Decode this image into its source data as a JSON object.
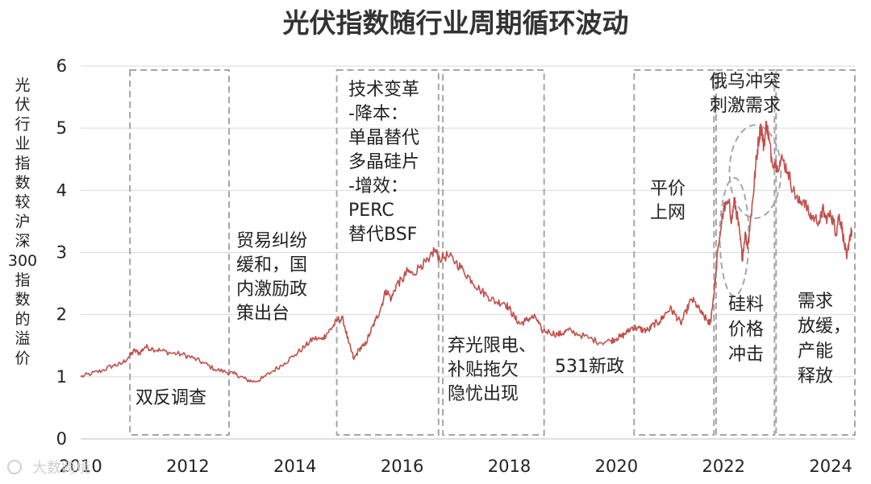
{
  "chart_data": {
    "type": "line",
    "title": "光伏指数随行业周期循环波动",
    "ylabel": "光伏行业指数较沪深300指数的溢价",
    "xlabel": "",
    "ylim": [
      0,
      6
    ],
    "y_ticks": [
      "0",
      "1",
      "2",
      "3",
      "4",
      "5",
      "6"
    ],
    "x_range": [
      2010.0,
      2024.45
    ],
    "x_ticks": [
      "2010",
      "2012",
      "2014",
      "2016",
      "2018",
      "2020",
      "2022",
      "2024"
    ],
    "grid": "horizontal",
    "line_color": "#c0504d",
    "series": [
      {
        "name": "",
        "x": [
          2010.0,
          2010.2,
          2010.4,
          2010.6,
          2010.75,
          2010.9,
          2011.0,
          2011.1,
          2011.2,
          2011.35,
          2011.5,
          2011.7,
          2011.9,
          2012.1,
          2012.3,
          2012.5,
          2012.7,
          2012.85,
          2013.0,
          2013.1,
          2013.25,
          2013.4,
          2013.6,
          2013.8,
          2014.0,
          2014.2,
          2014.35,
          2014.5,
          2014.6,
          2014.7,
          2014.8,
          2014.9,
          2015.0,
          2015.1,
          2015.2,
          2015.3,
          2015.4,
          2015.5,
          2015.6,
          2015.7,
          2015.8,
          2015.9,
          2016.0,
          2016.1,
          2016.2,
          2016.35,
          2016.5,
          2016.6,
          2016.7,
          2016.85,
          2017.0,
          2017.15,
          2017.3,
          2017.45,
          2017.6,
          2017.75,
          2017.9,
          2018.0,
          2018.1,
          2018.2,
          2018.3,
          2018.4,
          2018.5,
          2018.6,
          2018.75,
          2018.9,
          2019.0,
          2019.1,
          2019.3,
          2019.5,
          2019.7,
          2019.9,
          2020.0,
          2020.1,
          2020.2,
          2020.3,
          2020.4,
          2020.5,
          2020.6,
          2020.7,
          2020.8,
          2020.9,
          2021.0,
          2021.1,
          2021.2,
          2021.3,
          2021.4,
          2021.5,
          2021.6,
          2021.7,
          2021.75,
          2021.8,
          2021.85,
          2021.9,
          2022.0,
          2022.1,
          2022.15,
          2022.2,
          2022.25,
          2022.3,
          2022.35,
          2022.4,
          2022.45,
          2022.5,
          2022.55,
          2022.6,
          2022.65,
          2022.7,
          2022.75,
          2022.8,
          2022.85,
          2022.9,
          2023.0,
          2023.1,
          2023.2,
          2023.3,
          2023.4,
          2023.5,
          2023.6,
          2023.7,
          2023.8,
          2023.85,
          2023.9,
          2024.0,
          2024.05,
          2024.1,
          2024.15,
          2024.2,
          2024.25,
          2024.3,
          2024.35,
          2024.4
        ],
        "y": [
          1.0,
          1.05,
          1.1,
          1.18,
          1.2,
          1.32,
          1.42,
          1.38,
          1.48,
          1.45,
          1.42,
          1.38,
          1.36,
          1.3,
          1.22,
          1.12,
          1.08,
          1.05,
          1.0,
          0.95,
          0.92,
          0.98,
          1.1,
          1.22,
          1.35,
          1.5,
          1.62,
          1.6,
          1.7,
          1.8,
          1.92,
          1.92,
          1.55,
          1.28,
          1.45,
          1.5,
          1.7,
          1.9,
          2.1,
          2.4,
          2.25,
          2.5,
          2.55,
          2.7,
          2.65,
          2.8,
          2.85,
          3.05,
          2.9,
          2.95,
          2.85,
          2.7,
          2.55,
          2.4,
          2.3,
          2.2,
          2.2,
          2.1,
          1.95,
          1.85,
          1.9,
          1.95,
          1.95,
          1.75,
          1.72,
          1.68,
          1.7,
          1.75,
          1.68,
          1.62,
          1.55,
          1.58,
          1.62,
          1.65,
          1.72,
          1.8,
          1.78,
          1.75,
          1.75,
          1.85,
          1.88,
          2.0,
          2.1,
          2.0,
          1.85,
          2.05,
          2.25,
          2.15,
          2.0,
          1.9,
          1.85,
          2.2,
          2.6,
          3.1,
          3.7,
          3.8,
          3.5,
          3.85,
          3.6,
          3.3,
          2.9,
          3.3,
          3.1,
          3.5,
          3.9,
          4.4,
          4.8,
          5.05,
          4.7,
          5.1,
          4.8,
          4.5,
          4.4,
          4.5,
          4.3,
          4.0,
          3.8,
          3.85,
          3.6,
          3.55,
          3.5,
          3.7,
          3.55,
          3.6,
          3.5,
          3.3,
          3.6,
          3.45,
          3.15,
          2.9,
          3.25,
          3.35
        ]
      }
    ],
    "annotations": [
      {
        "id": "double-anti",
        "lines": [
          "双反调查"
        ]
      },
      {
        "id": "trade-ease",
        "lines": [
          "贸易纠纷",
          "缓和，国",
          "内激励政",
          "策出台"
        ]
      },
      {
        "id": "tech-change",
        "lines": [
          "技术变革",
          "-降本：",
          "单晶替代",
          "多晶硅片",
          "-增效：",
          "PERC",
          "替代BSF"
        ]
      },
      {
        "id": "curtail",
        "lines": [
          "弃光限电、",
          "补贴拖欠",
          "隐忧出现"
        ]
      },
      {
        "id": "policy-531",
        "lines": [
          "531新政"
        ]
      },
      {
        "id": "grid-parity",
        "lines": [
          "平价",
          "上网"
        ]
      },
      {
        "id": "russia",
        "lines": [
          "俄乌冲突",
          "刺激需求"
        ]
      },
      {
        "id": "silicon",
        "lines": [
          "硅料",
          "价格",
          "冲击"
        ]
      },
      {
        "id": "demand-ease",
        "lines": [
          "需求",
          "放缓，",
          "产能",
          "释放"
        ]
      }
    ],
    "watermark": "大数跨境"
  }
}
